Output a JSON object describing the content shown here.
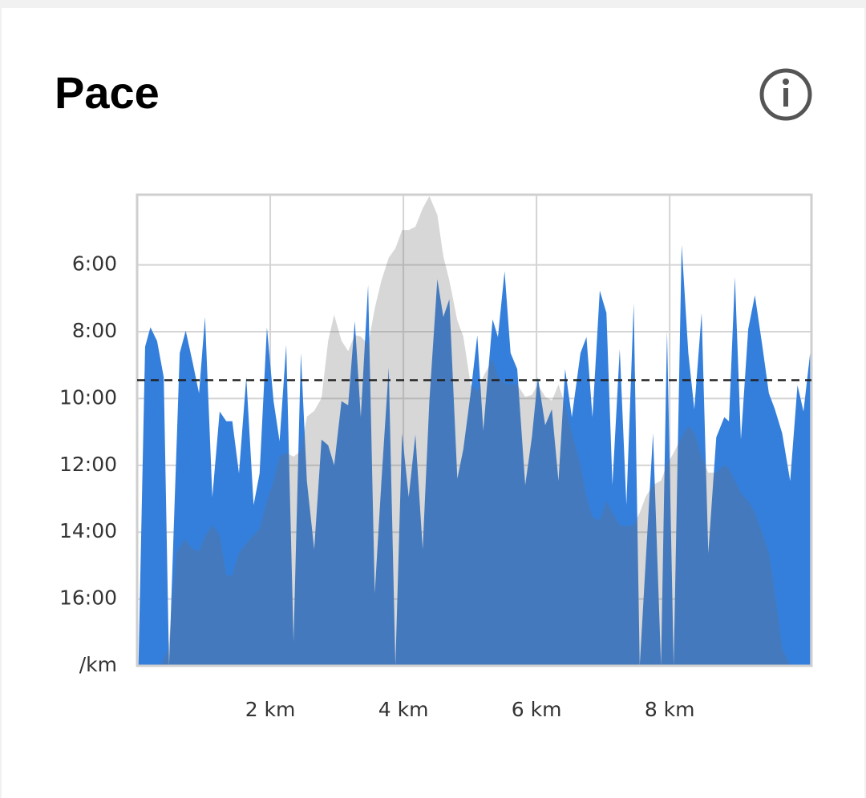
{
  "chart_data": {
    "type": "area",
    "title": "Pace",
    "xlim": [
      0,
      10.13
    ],
    "xticks": [
      {
        "value": 2,
        "label": "2 km"
      },
      {
        "value": 4,
        "label": "4 km"
      },
      {
        "value": 6,
        "label": "6 km"
      },
      {
        "value": 8,
        "label": "8 km"
      }
    ],
    "ylim": [
      18,
      3.9
    ],
    "yticks": [
      {
        "value": 6,
        "label": "6:00"
      },
      {
        "value": 8,
        "label": "8:00"
      },
      {
        "value": 10,
        "label": "10:00"
      },
      {
        "value": 12,
        "label": "12:00"
      },
      {
        "value": 14,
        "label": "14:00"
      },
      {
        "value": 16,
        "label": "16:00"
      },
      {
        "value": 18,
        "label": "/km"
      }
    ],
    "y2lim": [
      0,
      100
    ],
    "grid": true,
    "average": 9.45,
    "series": [
      {
        "color": "#347fdc",
        "opacity": 1,
        "x": [
          0.02,
          0.12,
          0.2,
          0.3,
          0.4,
          0.48,
          0.64,
          0.73,
          0.83,
          0.93,
          1.02,
          1.13,
          1.24,
          1.34,
          1.43,
          1.53,
          1.64,
          1.75,
          1.84,
          1.95,
          2.05,
          2.14,
          2.24,
          2.35,
          2.46,
          2.55,
          2.66,
          2.77,
          2.87,
          2.96,
          3.07,
          3.17,
          3.27,
          3.36,
          3.47,
          3.57,
          3.67,
          3.78,
          3.88,
          3.98,
          4.08,
          4.18,
          4.29,
          4.39,
          4.51,
          4.6,
          4.69,
          4.81,
          4.9,
          5.01,
          5.11,
          5.2,
          5.34,
          5.42,
          5.52,
          5.61,
          5.71,
          5.83,
          5.93,
          6.02,
          6.13,
          6.23,
          6.33,
          6.43,
          6.53,
          6.66,
          6.75,
          6.84,
          6.95,
          7.05,
          7.14,
          7.25,
          7.35,
          7.46,
          7.55,
          7.64,
          7.75,
          7.87,
          7.96,
          8.06,
          8.18,
          8.28,
          8.37,
          8.48,
          8.58,
          8.7,
          8.82,
          8.89,
          8.98,
          9.07,
          9.18,
          9.28,
          9.39,
          9.49,
          9.58,
          9.69,
          9.81,
          9.92,
          10.01,
          10.11
        ],
        "values": [
          18,
          8.45,
          7.87,
          8.28,
          9.36,
          18,
          8.64,
          7.97,
          8.88,
          9.84,
          7.56,
          12.95,
          10.39,
          10.68,
          10.68,
          12.24,
          9.36,
          13.19,
          12.24,
          7.87,
          10.08,
          11.28,
          8.4,
          17.27,
          8.64,
          12.47,
          14.51,
          11.23,
          11.4,
          12.0,
          10.08,
          10.2,
          7.68,
          10.56,
          6.6,
          15.83,
          12.47,
          9.07,
          18,
          11.04,
          12.95,
          11.08,
          14.51,
          10.08,
          6.43,
          7.56,
          7.03,
          12.4,
          11.52,
          9.84,
          8.11,
          10.96,
          7.63,
          8.16,
          6.19,
          8.64,
          9.12,
          12.59,
          11.16,
          9.36,
          10.8,
          10.32,
          12.47,
          9.12,
          10.56,
          8.64,
          8.16,
          10.56,
          6.77,
          7.44,
          12.59,
          8.52,
          13.19,
          7.15,
          18,
          14.87,
          11.04,
          18,
          7.97,
          18,
          5.4,
          8.64,
          10.32,
          7.44,
          14.63,
          11.16,
          10.56,
          10.68,
          6.36,
          11.23,
          7.92,
          6.91,
          8.4,
          9.84,
          10.32,
          11.04,
          12.47,
          9.6,
          10.39,
          8.64
        ]
      },
      {
        "color": "#6e6e6e",
        "opacity": 0.28,
        "axis": "y2",
        "x": [
          0.02,
          0.35,
          0.47,
          0.59,
          0.71,
          0.83,
          0.93,
          1.02,
          1.13,
          1.24,
          1.34,
          1.43,
          1.53,
          1.64,
          1.75,
          1.84,
          1.95,
          2.05,
          2.14,
          2.24,
          2.35,
          2.46,
          2.55,
          2.66,
          2.77,
          2.87,
          2.96,
          3.07,
          3.17,
          3.27,
          3.36,
          3.47,
          3.57,
          3.67,
          3.78,
          3.88,
          3.98,
          4.08,
          4.18,
          4.29,
          4.39,
          4.51,
          4.6,
          4.69,
          4.81,
          4.9,
          5.01,
          5.11,
          5.2,
          5.34,
          5.42,
          5.52,
          5.61,
          5.71,
          5.83,
          5.93,
          6.02,
          6.13,
          6.23,
          6.33,
          6.43,
          6.53,
          6.66,
          6.75,
          6.84,
          6.95,
          7.05,
          7.14,
          7.25,
          7.35,
          7.46,
          7.55,
          7.64,
          7.75,
          7.87,
          7.96,
          8.06,
          8.18,
          8.28,
          8.37,
          8.48,
          8.58,
          8.7,
          8.82,
          8.89,
          8.98,
          9.07,
          9.18,
          9.28,
          9.39,
          9.49,
          9.58,
          9.69,
          9.81,
          10.11
        ],
        "values": [
          0,
          0,
          3.6,
          24.0,
          26.9,
          24.8,
          24.3,
          27.4,
          29.9,
          27.7,
          19.2,
          19.2,
          24.0,
          26.0,
          27.7,
          29.1,
          35.0,
          39.3,
          44.4,
          45.2,
          44.4,
          45.6,
          52.9,
          54.1,
          56.8,
          69.0,
          74.5,
          69.0,
          66.8,
          70.2,
          69.9,
          68.2,
          75.9,
          81.8,
          86.6,
          88.6,
          92.5,
          92.5,
          93.2,
          97.1,
          99.7,
          95.7,
          86.9,
          81.8,
          73.3,
          69.9,
          59.7,
          58.3,
          61.4,
          65.1,
          61.4,
          60.0,
          59.7,
          59.7,
          57.1,
          57.5,
          59.7,
          57.1,
          56.3,
          59.7,
          55.4,
          49.5,
          42.7,
          35.9,
          31.6,
          30.8,
          35.0,
          32.5,
          29.9,
          29.6,
          29.9,
          32.5,
          35.9,
          38.4,
          39.3,
          42.7,
          45.2,
          48.6,
          50.9,
          49.5,
          44.4,
          41.0,
          41.0,
          42.7,
          41.8,
          39.3,
          36.7,
          35.0,
          32.5,
          28.2,
          24.0,
          15.5,
          3.6,
          0,
          0
        ]
      }
    ]
  }
}
